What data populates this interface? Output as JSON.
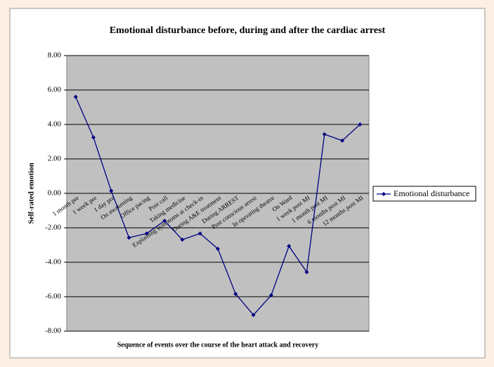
{
  "chart_data": {
    "type": "line",
    "title": "Emotional disturbance before, during and after the cardiac arrest",
    "x_label": "Sequence of events over the course of the heart attack and recovery",
    "y_label": "Self-rated emotion",
    "categories": [
      "1 month pre",
      "1 week pre",
      "1 day pre",
      "On awakening",
      "Office pacing",
      "Post call",
      "Taking medicine",
      "Explaining symptoms at check-in",
      "During A&E treatment",
      "During ARREST",
      "Post conscious arrest",
      "In operating theatre",
      "On Ward",
      "1 week post MI",
      "1 month post MI",
      "6 months post MI",
      "12 months post MI"
    ],
    "series": [
      {
        "name": "Emotional disturbance",
        "color": "#000080",
        "values": [
          5.6,
          3.25,
          0.15,
          -2.57,
          -2.33,
          -1.59,
          -2.69,
          -2.33,
          -3.22,
          -5.84,
          -7.06,
          -5.92,
          -3.06,
          -4.57,
          3.43,
          3.06,
          4.0
        ]
      }
    ],
    "ylim": [
      -8,
      8
    ],
    "yticks": [
      {
        "value": -8,
        "label": "-8.00"
      },
      {
        "value": -6,
        "label": "-6.00"
      },
      {
        "value": -4,
        "label": "-4.00"
      },
      {
        "value": -2,
        "label": "-2.00"
      },
      {
        "value": 0,
        "label": "0.00"
      },
      {
        "value": 2,
        "label": "2.00"
      },
      {
        "value": 4,
        "label": "4.00"
      },
      {
        "value": 6,
        "label": "6.00"
      },
      {
        "value": 8,
        "label": "8.00"
      }
    ],
    "grid": true,
    "legend": "right"
  }
}
